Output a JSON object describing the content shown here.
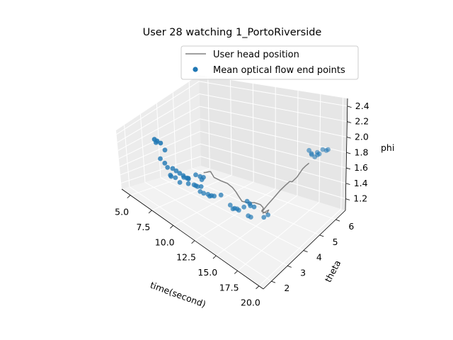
{
  "chart_data": {
    "type": "scatter",
    "title": "User 28 watching 1_PortoRiverside",
    "xlabel": "time(second)",
    "ylabel": "theta",
    "zlabel": "phi",
    "xlim": [
      4,
      20.5
    ],
    "ylim": [
      1.5,
      6.6
    ],
    "zlim": [
      1.05,
      2.5
    ],
    "xticks": [
      5.0,
      7.5,
      10.0,
      12.5,
      15.0,
      17.5,
      20.0
    ],
    "xtick_labels": [
      "5.0",
      "7.5",
      "10.0",
      "12.5",
      "15.0",
      "17.5",
      "20.0"
    ],
    "yticks": [
      2,
      3,
      4,
      5,
      6
    ],
    "ytick_labels": [
      "2",
      "3",
      "4",
      "5",
      "6"
    ],
    "zticks": [
      1.2,
      1.4,
      1.6,
      1.8,
      2.0,
      2.2,
      2.4
    ],
    "ztick_labels": [
      "1.2",
      "1.4",
      "1.6",
      "1.8",
      "2.0",
      "2.2",
      "2.4"
    ],
    "grid": true,
    "legend_position": "top-right",
    "legend": [
      "User head position",
      "Mean optical flow end points"
    ],
    "series": [
      {
        "name": "User head position",
        "kind": "line",
        "color": "#808080",
        "points": [
          [
            10.0,
            3.5,
            1.75
          ],
          [
            10.3,
            3.5,
            1.78
          ],
          [
            10.6,
            3.5,
            1.82
          ],
          [
            10.8,
            3.5,
            1.84
          ],
          [
            11.0,
            3.6,
            1.72
          ],
          [
            11.2,
            3.9,
            1.6
          ],
          [
            11.4,
            4.2,
            1.5
          ],
          [
            11.6,
            4.4,
            1.4
          ],
          [
            11.8,
            4.5,
            1.32
          ],
          [
            12.0,
            4.55,
            1.25
          ],
          [
            12.3,
            4.6,
            1.17
          ],
          [
            12.7,
            4.8,
            1.13
          ],
          [
            13.0,
            5.0,
            1.12
          ],
          [
            13.5,
            5.1,
            1.1
          ],
          [
            14.0,
            5.0,
            1.1
          ],
          [
            14.2,
            4.9,
            1.11
          ],
          [
            14.4,
            4.7,
            1.13
          ],
          [
            14.6,
            4.6,
            1.15
          ],
          [
            14.8,
            4.65,
            1.14
          ],
          [
            15.0,
            4.7,
            1.13
          ],
          [
            15.0,
            4.8,
            1.16
          ],
          [
            15.1,
            4.4,
            1.2
          ],
          [
            15.4,
            4.2,
            1.3
          ],
          [
            15.8,
            4.1,
            1.4
          ],
          [
            16.2,
            4.05,
            1.5
          ],
          [
            16.6,
            4.05,
            1.6
          ],
          [
            17.0,
            4.1,
            1.7
          ],
          [
            17.4,
            4.2,
            1.8
          ],
          [
            17.8,
            4.3,
            1.88
          ],
          [
            18.1,
            4.4,
            1.93
          ],
          [
            18.2,
            4.5,
            1.9
          ],
          [
            18.2,
            4.8,
            1.88
          ],
          [
            18.1,
            5.2,
            1.88
          ],
          [
            18.05,
            5.4,
            1.86
          ],
          [
            18.1,
            5.6,
            1.85
          ]
        ]
      },
      {
        "name": "Mean optical flow end points",
        "kind": "scatter",
        "color": "#1f77b4",
        "points": [
          [
            6.8,
            2.3,
            2.44
          ],
          [
            7.1,
            2.3,
            2.44
          ],
          [
            7.5,
            2.3,
            2.44
          ],
          [
            5.6,
            3.0,
            2.06
          ],
          [
            6.2,
            3.2,
            1.92
          ],
          [
            5.8,
            3.1,
            1.72
          ],
          [
            6.1,
            3.2,
            1.64
          ],
          [
            6.4,
            3.2,
            1.58
          ],
          [
            6.8,
            3.3,
            1.58
          ],
          [
            7.2,
            3.3,
            1.57
          ],
          [
            7.6,
            3.3,
            1.56
          ],
          [
            8.0,
            3.3,
            1.55
          ],
          [
            8.4,
            3.3,
            1.54
          ],
          [
            8.6,
            3.3,
            1.54
          ],
          [
            6.3,
            3.4,
            1.38
          ],
          [
            6.7,
            3.5,
            1.35
          ],
          [
            6.2,
            3.5,
            1.33
          ],
          [
            7.0,
            3.6,
            1.27
          ],
          [
            7.3,
            3.7,
            1.38
          ],
          [
            7.8,
            3.7,
            1.3
          ],
          [
            8.2,
            3.5,
            1.48
          ],
          [
            8.7,
            3.7,
            1.55
          ],
          [
            9.2,
            3.7,
            1.56
          ],
          [
            9.2,
            3.8,
            1.48
          ],
          [
            9.4,
            3.8,
            1.54
          ],
          [
            9.1,
            3.8,
            1.34
          ],
          [
            8.3,
            4.0,
            1.24
          ],
          [
            7.9,
            4.0,
            1.24
          ],
          [
            8.1,
            4.0,
            1.24
          ],
          [
            8.4,
            4.1,
            1.14
          ],
          [
            8.8,
            4.1,
            1.14
          ],
          [
            9.3,
            4.1,
            1.16
          ],
          [
            9.5,
            4.1,
            1.14
          ],
          [
            9.9,
            4.0,
            1.2
          ],
          [
            10.4,
            3.9,
            1.25
          ],
          [
            11.0,
            4.0,
            1.3
          ],
          [
            11.5,
            4.3,
            1.1
          ],
          [
            12.0,
            4.3,
            1.08
          ],
          [
            11.7,
            4.35,
            1.04
          ],
          [
            12.3,
            4.4,
            1.05
          ],
          [
            12.1,
            4.4,
            1.06
          ],
          [
            13.2,
            4.5,
            1.0
          ],
          [
            13.5,
            4.5,
            1.0
          ],
          [
            12.9,
            4.4,
            1.15
          ],
          [
            14.0,
            4.0,
            1.42
          ],
          [
            14.3,
            4.0,
            1.4
          ],
          [
            14.2,
            4.1,
            1.33
          ],
          [
            14.8,
            4.0,
            1.38
          ],
          [
            15.0,
            4.5,
            1.1
          ],
          [
            15.3,
            4.6,
            1.14
          ],
          [
            17.9,
            5.7,
            2.0
          ],
          [
            18.2,
            5.7,
            1.95
          ],
          [
            18.0,
            5.8,
            1.93
          ],
          [
            18.5,
            5.9,
            1.9
          ],
          [
            18.2,
            5.9,
            1.86
          ],
          [
            18.3,
            6.0,
            1.9
          ],
          [
            18.7,
            5.9,
            1.92
          ],
          [
            18.9,
            6.0,
            1.96
          ],
          [
            19.3,
            6.0,
            1.96
          ],
          [
            19.5,
            6.0,
            1.98
          ]
        ]
      }
    ]
  }
}
